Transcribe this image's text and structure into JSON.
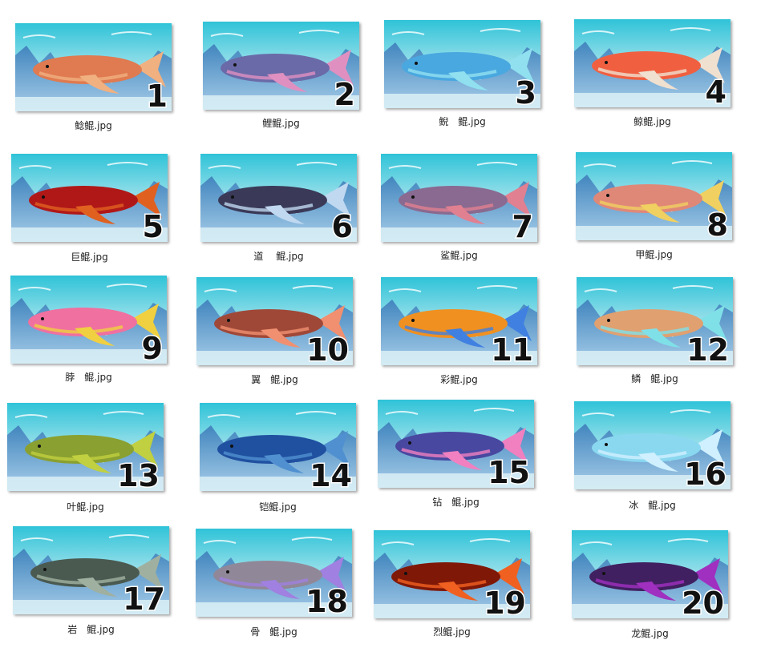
{
  "files": [
    {
      "number": 1,
      "name": "鲶鲲.jpg"
    },
    {
      "number": 2,
      "name": "鲤鲲.jpg"
    },
    {
      "number": 3,
      "name": "鲵　鲲.jpg"
    },
    {
      "number": 4,
      "name": "鲸鲲.jpg"
    },
    {
      "number": 5,
      "name": "巨鲲.jpg"
    },
    {
      "number": 6,
      "name": "道　 鲲.jpg"
    },
    {
      "number": 7,
      "name": "鲨鲲.jpg"
    },
    {
      "number": 8,
      "name": "甲鲲.jpg"
    },
    {
      "number": 9,
      "name": "脖　鲲.jpg"
    },
    {
      "number": 10,
      "name": "翼　鲲.jpg"
    },
    {
      "number": 11,
      "name": "彩鲲.jpg"
    },
    {
      "number": 12,
      "name": "鳞　鲲.jpg"
    },
    {
      "number": 13,
      "name": "叶鲲.jpg"
    },
    {
      "number": 14,
      "name": "铠鲲.jpg"
    },
    {
      "number": 15,
      "name": "钻　鲲.jpg"
    },
    {
      "number": 16,
      "name": "冰　鲲.jpg"
    },
    {
      "number": 17,
      "name": "岩　鲲.jpg"
    },
    {
      "number": 18,
      "name": "骨　鲲.jpg"
    },
    {
      "number": 19,
      "name": "烈鲲.jpg"
    },
    {
      "number": 20,
      "name": "龙鲲.jpg"
    }
  ]
}
